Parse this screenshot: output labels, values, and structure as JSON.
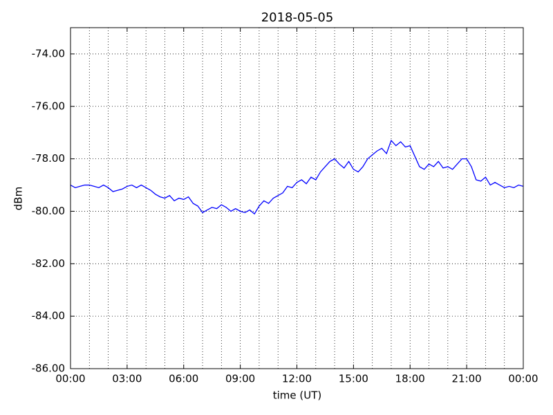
{
  "chart_data": {
    "type": "line",
    "title": "2018-05-05",
    "x_label": "time (UT)",
    "y_label": "dBm",
    "x": [
      0,
      0.25,
      0.5,
      0.75,
      1,
      1.25,
      1.5,
      1.75,
      2,
      2.25,
      2.5,
      2.75,
      3,
      3.25,
      3.5,
      3.75,
      4,
      4.25,
      4.5,
      4.75,
      5,
      5.25,
      5.5,
      5.75,
      6,
      6.25,
      6.5,
      6.75,
      7,
      7.25,
      7.5,
      7.75,
      8,
      8.25,
      8.5,
      8.75,
      9,
      9.25,
      9.5,
      9.75,
      10,
      10.25,
      10.5,
      10.75,
      11,
      11.25,
      11.5,
      11.75,
      12,
      12.25,
      12.5,
      12.75,
      13,
      13.25,
      13.5,
      13.75,
      14,
      14.25,
      14.5,
      14.75,
      15,
      15.25,
      15.5,
      15.75,
      16,
      16.25,
      16.5,
      16.75,
      17,
      17.25,
      17.5,
      17.75,
      18,
      18.25,
      18.5,
      18.75,
      19,
      19.25,
      19.5,
      19.75,
      20,
      20.25,
      20.5,
      20.75,
      21,
      21.25,
      21.5,
      21.75,
      22,
      22.25,
      22.5,
      22.75,
      23,
      23.25,
      23.5,
      23.75,
      24
    ],
    "series": [
      {
        "color": "#0000ff",
        "values": [
          -79.0,
          -79.1,
          -79.05,
          -79.0,
          -79.0,
          -79.05,
          -79.1,
          -79.0,
          -79.1,
          -79.25,
          -79.2,
          -79.15,
          -79.05,
          -79.0,
          -79.1,
          -79.0,
          -79.1,
          -79.2,
          -79.35,
          -79.45,
          -79.5,
          -79.4,
          -79.6,
          -79.5,
          -79.55,
          -79.45,
          -79.7,
          -79.8,
          -80.05,
          -79.95,
          -79.85,
          -79.9,
          -79.75,
          -79.85,
          -80.0,
          -79.9,
          -80.0,
          -80.05,
          -79.95,
          -80.1,
          -79.8,
          -79.6,
          -79.7,
          -79.5,
          -79.4,
          -79.3,
          -79.05,
          -79.1,
          -78.9,
          -78.8,
          -78.95,
          -78.7,
          -78.8,
          -78.5,
          -78.3,
          -78.1,
          -78.0,
          -78.2,
          -78.35,
          -78.1,
          -78.4,
          -78.5,
          -78.3,
          -78.0,
          -77.85,
          -77.7,
          -77.6,
          -77.8,
          -77.3,
          -77.5,
          -77.35,
          -77.55,
          -77.5,
          -77.9,
          -78.3,
          -78.4,
          -78.2,
          -78.3,
          -78.1,
          -78.35,
          -78.3,
          -78.4,
          -78.2,
          -78.0,
          -78.0,
          -78.3,
          -78.8,
          -78.85,
          -78.7,
          -79.0,
          -78.9,
          -79.0,
          -79.1,
          -79.05,
          -79.1,
          -79.0,
          -79.05
        ]
      }
    ],
    "xlim": [
      0,
      24
    ],
    "xticks": [
      {
        "value": 0,
        "label": "00:00"
      },
      {
        "value": 3,
        "label": "03:00"
      },
      {
        "value": 6,
        "label": "06:00"
      },
      {
        "value": 9,
        "label": "09:00"
      },
      {
        "value": 12,
        "label": "12:00"
      },
      {
        "value": 15,
        "label": "15:00"
      },
      {
        "value": 18,
        "label": "18:00"
      },
      {
        "value": 21,
        "label": "21:00"
      },
      {
        "value": 24,
        "label": "00:00"
      }
    ],
    "xminorticks": [
      1,
      2,
      4,
      5,
      7,
      8,
      10,
      11,
      13,
      14,
      16,
      17,
      19,
      20,
      22,
      23
    ],
    "ylim": [
      -86,
      -73
    ],
    "yticks": [
      {
        "value": -86,
        "label": "-86.00"
      },
      {
        "value": -84,
        "label": "-84.00"
      },
      {
        "value": -82,
        "label": "-82.00"
      },
      {
        "value": -80,
        "label": "-80.00"
      },
      {
        "value": -78,
        "label": "-78.00"
      },
      {
        "value": -76,
        "label": "-76.00"
      },
      {
        "value": -74,
        "label": "-74.00"
      }
    ],
    "grid": true
  }
}
